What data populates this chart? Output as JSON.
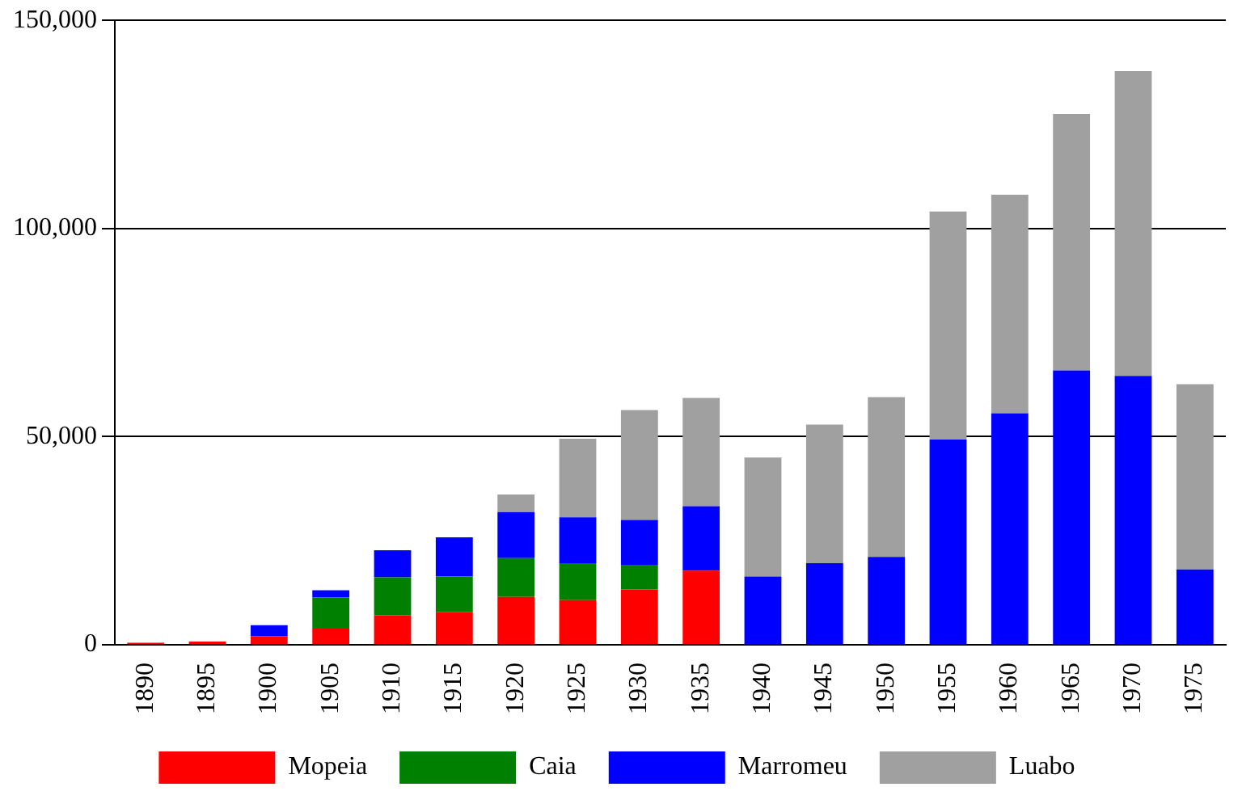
{
  "chart_data": {
    "type": "bar",
    "stacked": true,
    "categories": [
      "1890",
      "1895",
      "1900",
      "1905",
      "1910",
      "1915",
      "1920",
      "1925",
      "1930",
      "1935",
      "1940",
      "1945",
      "1950",
      "1955",
      "1960",
      "1965",
      "1970",
      "1975"
    ],
    "series": [
      {
        "name": "Mopeia",
        "color": "#ff0000",
        "values": [
          500,
          800,
          2100,
          3900,
          7100,
          7800,
          11500,
          10700,
          13300,
          17800,
          null,
          null,
          null,
          null,
          null,
          null,
          null,
          null
        ]
      },
      {
        "name": "Caia",
        "color": "#008000",
        "values": [
          null,
          null,
          null,
          7500,
          9100,
          8600,
          9300,
          8900,
          5900,
          null,
          null,
          null,
          null,
          null,
          null,
          null,
          null,
          null
        ]
      },
      {
        "name": "Marromeu",
        "color": "#0000ff",
        "values": [
          null,
          null,
          2600,
          1700,
          6500,
          9400,
          11100,
          11000,
          10800,
          15500,
          16400,
          19600,
          21100,
          49300,
          55600,
          65900,
          64600,
          18100
        ]
      },
      {
        "name": "Luabo",
        "color": "#a0a0a0",
        "values": [
          null,
          null,
          null,
          null,
          null,
          null,
          4200,
          18900,
          26400,
          26000,
          28600,
          33300,
          38400,
          54800,
          52500,
          61600,
          73200,
          44500
        ]
      }
    ],
    "ylim": [
      0,
      150000
    ],
    "yticks": [
      0,
      {
        "value": 50000,
        "label": "50,000"
      },
      {
        "value": 100000,
        "label": "100,000"
      },
      {
        "value": 150000,
        "label": "150,000"
      }
    ],
    "grid": "y",
    "legend": "bottom"
  }
}
